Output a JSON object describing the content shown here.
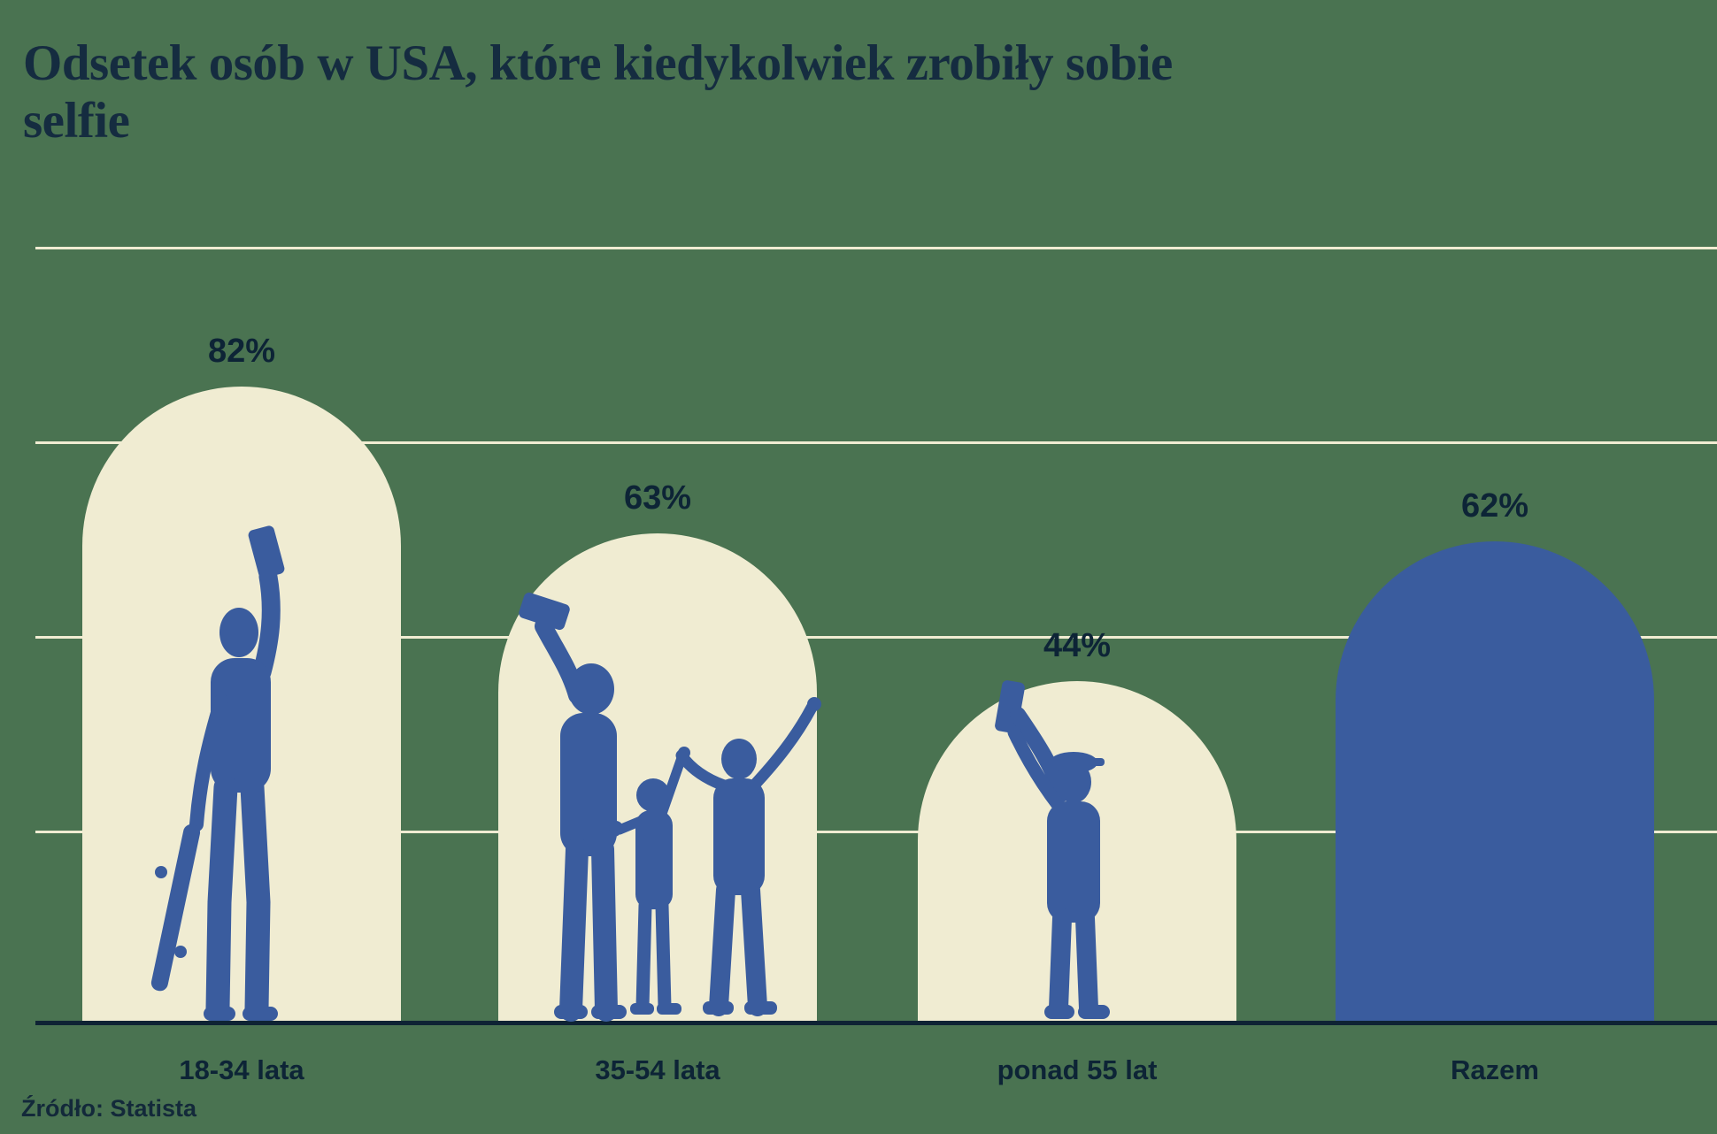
{
  "title": "Odsetek osób w USA, które kiedykolwiek zrobiły sobie selfie",
  "source": "Źródło: Statista",
  "colors": {
    "background": "#4A7351",
    "bar_cream": "#F0ECD2",
    "bar_blue": "#3A5C9E",
    "silhouette_blue": "#3A5C9E",
    "gridline": "#F0ECD2",
    "axis": "#0E2334",
    "text_navy": "#0D2436",
    "title_navy": "#152C40"
  },
  "chart_data": {
    "type": "bar",
    "title": "Odsetek osób w USA, które kiedykolwiek zrobiły sobie selfie",
    "categories": [
      "18-34 lata",
      "35-54 lata",
      "ponad 55 lat",
      "Razem"
    ],
    "values": [
      82,
      63,
      44,
      62
    ],
    "value_labels": [
      "82%",
      "63%",
      "44%",
      "62%"
    ],
    "bar_colors": [
      "#F0ECD2",
      "#F0ECD2",
      "#F0ECD2",
      "#3A5C9E"
    ],
    "bar_shape": "arch-rounded-top",
    "bar_illustrations": [
      "young-adult-taking-selfie-with-skateboard",
      "family-with-two-children-taking-selfie",
      "senior-man-in-flat-cap-taking-selfie",
      null
    ],
    "xlabel": "",
    "ylabel": "",
    "ylim": [
      0,
      100
    ],
    "gridlines_percent": [
      25,
      50,
      75,
      100
    ],
    "grid": true,
    "legend_position": "none",
    "source": "Źródło: Statista"
  }
}
